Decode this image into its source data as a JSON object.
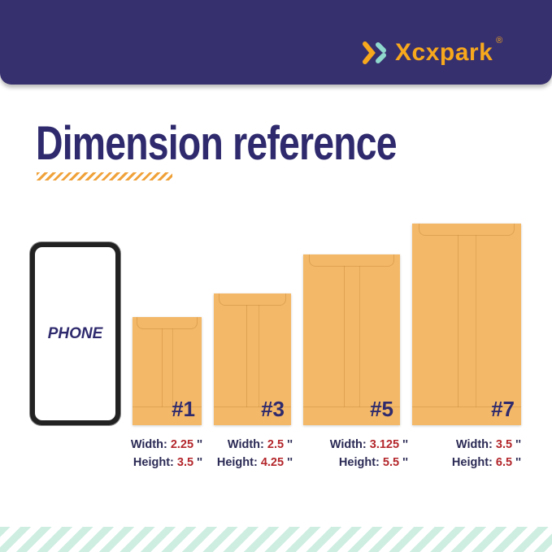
{
  "brand": {
    "name": "Xcxpark",
    "registered": "®",
    "colors": {
      "band": "#37306f",
      "logo": "#f7a81c",
      "logo_accent": "#8fd8cd"
    }
  },
  "title": "Dimension reference",
  "phone": {
    "label": "PHONE"
  },
  "envelopes": [
    {
      "number": "#1",
      "width_label": "Width:",
      "width": "2.25",
      "height_label": "Height:",
      "height": "3.5",
      "unit": "''"
    },
    {
      "number": "#3",
      "width_label": "Width:",
      "width": "2.5",
      "height_label": "Height:",
      "height": "4.25",
      "unit": "''"
    },
    {
      "number": "#5",
      "width_label": "Width:",
      "width": "3.125",
      "height_label": "Height:",
      "height": "5.5",
      "unit": "''"
    },
    {
      "number": "#7",
      "width_label": "Width:",
      "width": "3.5",
      "height_label": "Height:",
      "height": "6.5",
      "unit": "''"
    }
  ],
  "colors": {
    "title": "#2e2a6d",
    "value": "#b3262b",
    "envelope": "#f3b868"
  }
}
